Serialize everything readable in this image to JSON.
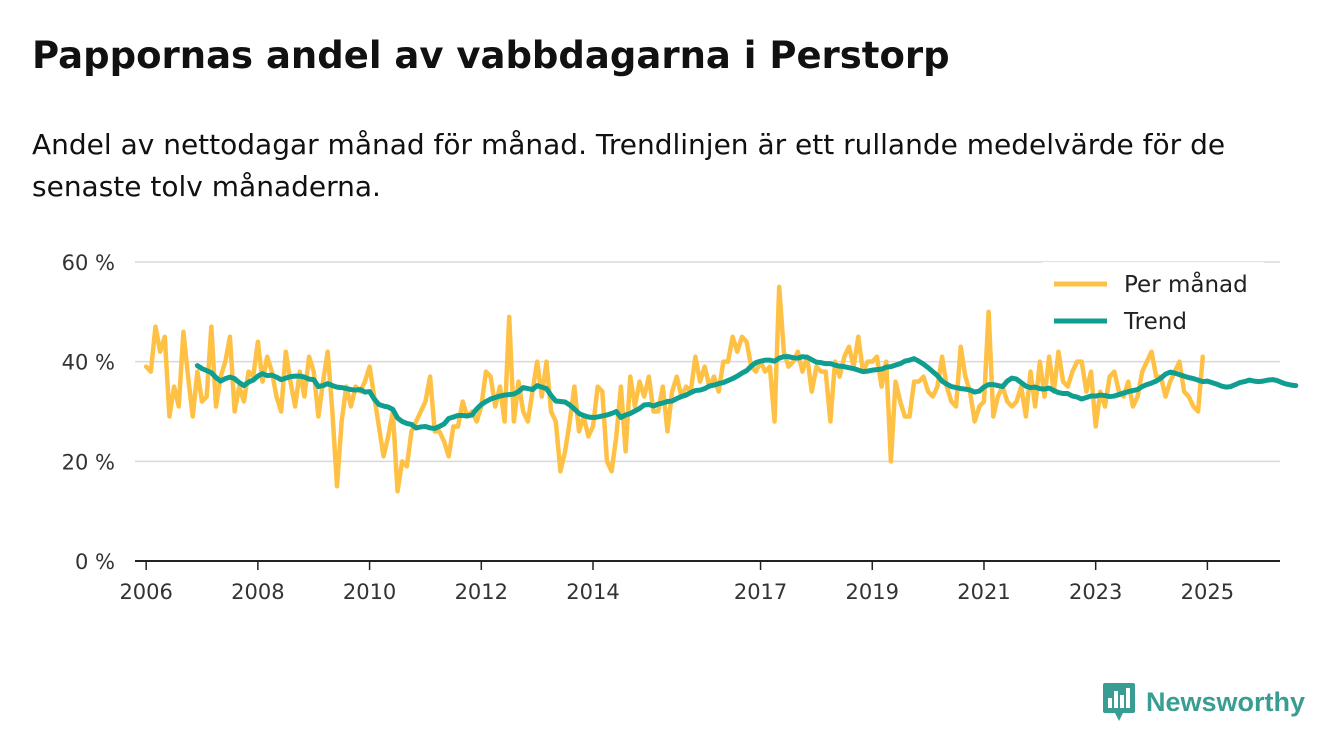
{
  "header": {
    "title": "Pappornas andel av vabbdagarna i Perstorp",
    "subtitle": "Andel av nettodagar månad för månad. Trendlinjen är ett rullande medelvärde för de senaste tolv månaderna."
  },
  "brand": {
    "name": "Newsworthy",
    "icon": "bar-chart-speech-bubble-icon"
  },
  "colors": {
    "monthly": "#ffc145",
    "trend": "#0f9e8f",
    "grid": "#d9d9d9",
    "axis": "#222222",
    "brand": "#3a9d93"
  },
  "chart_data": {
    "type": "line",
    "title": "Pappornas andel av vabbdagarna i Perstorp",
    "xlabel": "",
    "ylabel": "",
    "ylim": [
      0,
      60
    ],
    "xlim": [
      2005.8,
      2026.3
    ],
    "y_ticks": [
      0,
      20,
      40,
      60
    ],
    "y_tick_labels": [
      "0 %",
      "20 %",
      "40 %",
      "60 %"
    ],
    "x_ticks": [
      2006,
      2008,
      2010,
      2012,
      2014,
      2017,
      2019,
      2021,
      2023,
      2025
    ],
    "x_tick_labels": [
      "2006",
      "2008",
      "2010",
      "2012",
      "2014",
      "2017",
      "2019",
      "2021",
      "2023",
      "2025"
    ],
    "legend": {
      "position": "top-right",
      "entries": [
        "Per månad",
        "Trend"
      ]
    },
    "grid": true,
    "series": [
      {
        "name": "Per månad",
        "start": 2006.0,
        "step_months": 1,
        "values": [
          39,
          38,
          47,
          42,
          45,
          29,
          35,
          31,
          46,
          37,
          29,
          38,
          32,
          33,
          47,
          31,
          37,
          40,
          45,
          30,
          35,
          32,
          38,
          37,
          44,
          36,
          41,
          38,
          33,
          30,
          42,
          36,
          31,
          38,
          33,
          41,
          38,
          29,
          36,
          42,
          30,
          15,
          28,
          35,
          31,
          35,
          34,
          36,
          39,
          33,
          27,
          21,
          25,
          30,
          14,
          20,
          19,
          26,
          28,
          30,
          32,
          37,
          26,
          26,
          24,
          21,
          27,
          27,
          32,
          29,
          30,
          28,
          31,
          38,
          37,
          31,
          35,
          28,
          49,
          28,
          36,
          30,
          28,
          34,
          40,
          33,
          40,
          30,
          28,
          18,
          22,
          28,
          35,
          26,
          29,
          25,
          27,
          35,
          34,
          20,
          18,
          25,
          35,
          22,
          37,
          31,
          36,
          33,
          37,
          30,
          30,
          35,
          26,
          34,
          37,
          33,
          35,
          34,
          41,
          36,
          39,
          35,
          37,
          34,
          40,
          40,
          45,
          42,
          45,
          44,
          39,
          38,
          40,
          38,
          39,
          28,
          55,
          42,
          39,
          40,
          42,
          38,
          41,
          34,
          39,
          38,
          38,
          28,
          40,
          37,
          41,
          43,
          39,
          45,
          38,
          40,
          40,
          41,
          35,
          40,
          20,
          36,
          32,
          29,
          29,
          36,
          36,
          37,
          34,
          33,
          35,
          41,
          35,
          32,
          31,
          43,
          37,
          34,
          28,
          31,
          32,
          50,
          29,
          33,
          35,
          32,
          31,
          32,
          35,
          29,
          38,
          31,
          40,
          33,
          41,
          34,
          42,
          36,
          35,
          38,
          40,
          40,
          34,
          38,
          27,
          34,
          31,
          37,
          38,
          34,
          33,
          36,
          31,
          33,
          38,
          40,
          42,
          37,
          37,
          33,
          36,
          38,
          40,
          34,
          33,
          31,
          30,
          41
        ]
      },
      {
        "name": "Trend",
        "start": 2006.9167,
        "step_months": 1,
        "values": [
          39.2,
          38.6,
          38.2,
          37.8,
          36.8,
          36.1,
          36.6,
          36.9,
          36.6,
          35.8,
          35.2,
          35.9,
          36.3,
          37.1,
          37.6,
          37.2,
          37.3,
          36.9,
          36.4,
          36.7,
          37.0,
          37.1,
          37.1,
          36.9,
          36.5,
          36.4,
          35.0,
          35.2,
          35.6,
          35.2,
          34.9,
          34.8,
          34.6,
          34.4,
          34.3,
          34.4,
          33.9,
          34.0,
          32.5,
          31.4,
          31.1,
          30.9,
          30.4,
          28.7,
          28.0,
          27.6,
          27.4,
          26.7,
          26.9,
          27.0,
          26.7,
          26.6,
          27.0,
          27.5,
          28.6,
          28.9,
          29.2,
          29.2,
          29.1,
          29.3,
          30.5,
          31.4,
          32.0,
          32.5,
          32.8,
          33.1,
          33.3,
          33.4,
          33.5,
          34.0,
          34.8,
          34.6,
          34.4,
          35.2,
          34.9,
          34.6,
          33.2,
          32.1,
          32.0,
          31.9,
          31.3,
          30.5,
          29.6,
          29.2,
          28.9,
          28.8,
          28.9,
          29.1,
          29.3,
          29.6,
          30.0,
          28.8,
          29.3,
          29.6,
          30.1,
          30.6,
          31.3,
          31.4,
          31.1,
          31.5,
          31.7,
          32.0,
          32.1,
          32.6,
          33.0,
          33.3,
          33.8,
          34.2,
          34.3,
          34.6,
          35.1,
          35.3,
          35.6,
          35.8,
          36.2,
          36.6,
          37.1,
          37.7,
          38.2,
          39.1,
          39.8,
          40.1,
          40.3,
          40.3,
          40.1,
          40.7,
          41.0,
          41.0,
          40.8,
          40.7,
          41.0,
          40.9,
          40.4,
          39.9,
          39.8,
          39.6,
          39.6,
          39.3,
          39.1,
          39.0,
          38.8,
          38.6,
          38.3,
          38.0,
          38.1,
          38.3,
          38.4,
          38.5,
          38.9,
          39.0,
          39.3,
          39.6,
          40.1,
          40.3,
          40.6,
          40.1,
          39.5,
          38.8,
          38.0,
          37.2,
          36.1,
          35.5,
          35.0,
          34.8,
          34.6,
          34.5,
          34.3,
          33.9,
          34.1,
          34.9,
          35.4,
          35.4,
          35.2,
          35.0,
          36.1,
          36.7,
          36.5,
          35.8,
          35.1,
          34.8,
          34.9,
          34.6,
          34.5,
          34.7,
          34.2,
          33.8,
          33.6,
          33.6,
          33.1,
          32.9,
          32.5,
          32.8,
          33.1,
          33.1,
          33.3,
          33.2,
          33.0,
          33.1,
          33.4,
          33.7,
          34.0,
          34.2,
          34.4,
          35.0,
          35.4,
          35.7,
          36.1,
          36.7,
          37.5,
          37.9,
          37.7,
          37.4,
          37.1,
          36.8,
          36.6,
          36.3,
          36.0,
          36.1,
          35.8,
          35.5,
          35.1,
          34.9,
          35.0,
          35.4,
          35.8,
          36.0,
          36.3,
          36.1,
          36.0,
          36.1,
          36.3,
          36.4,
          36.2,
          35.8,
          35.5,
          35.3,
          35.2
        ]
      }
    ]
  }
}
